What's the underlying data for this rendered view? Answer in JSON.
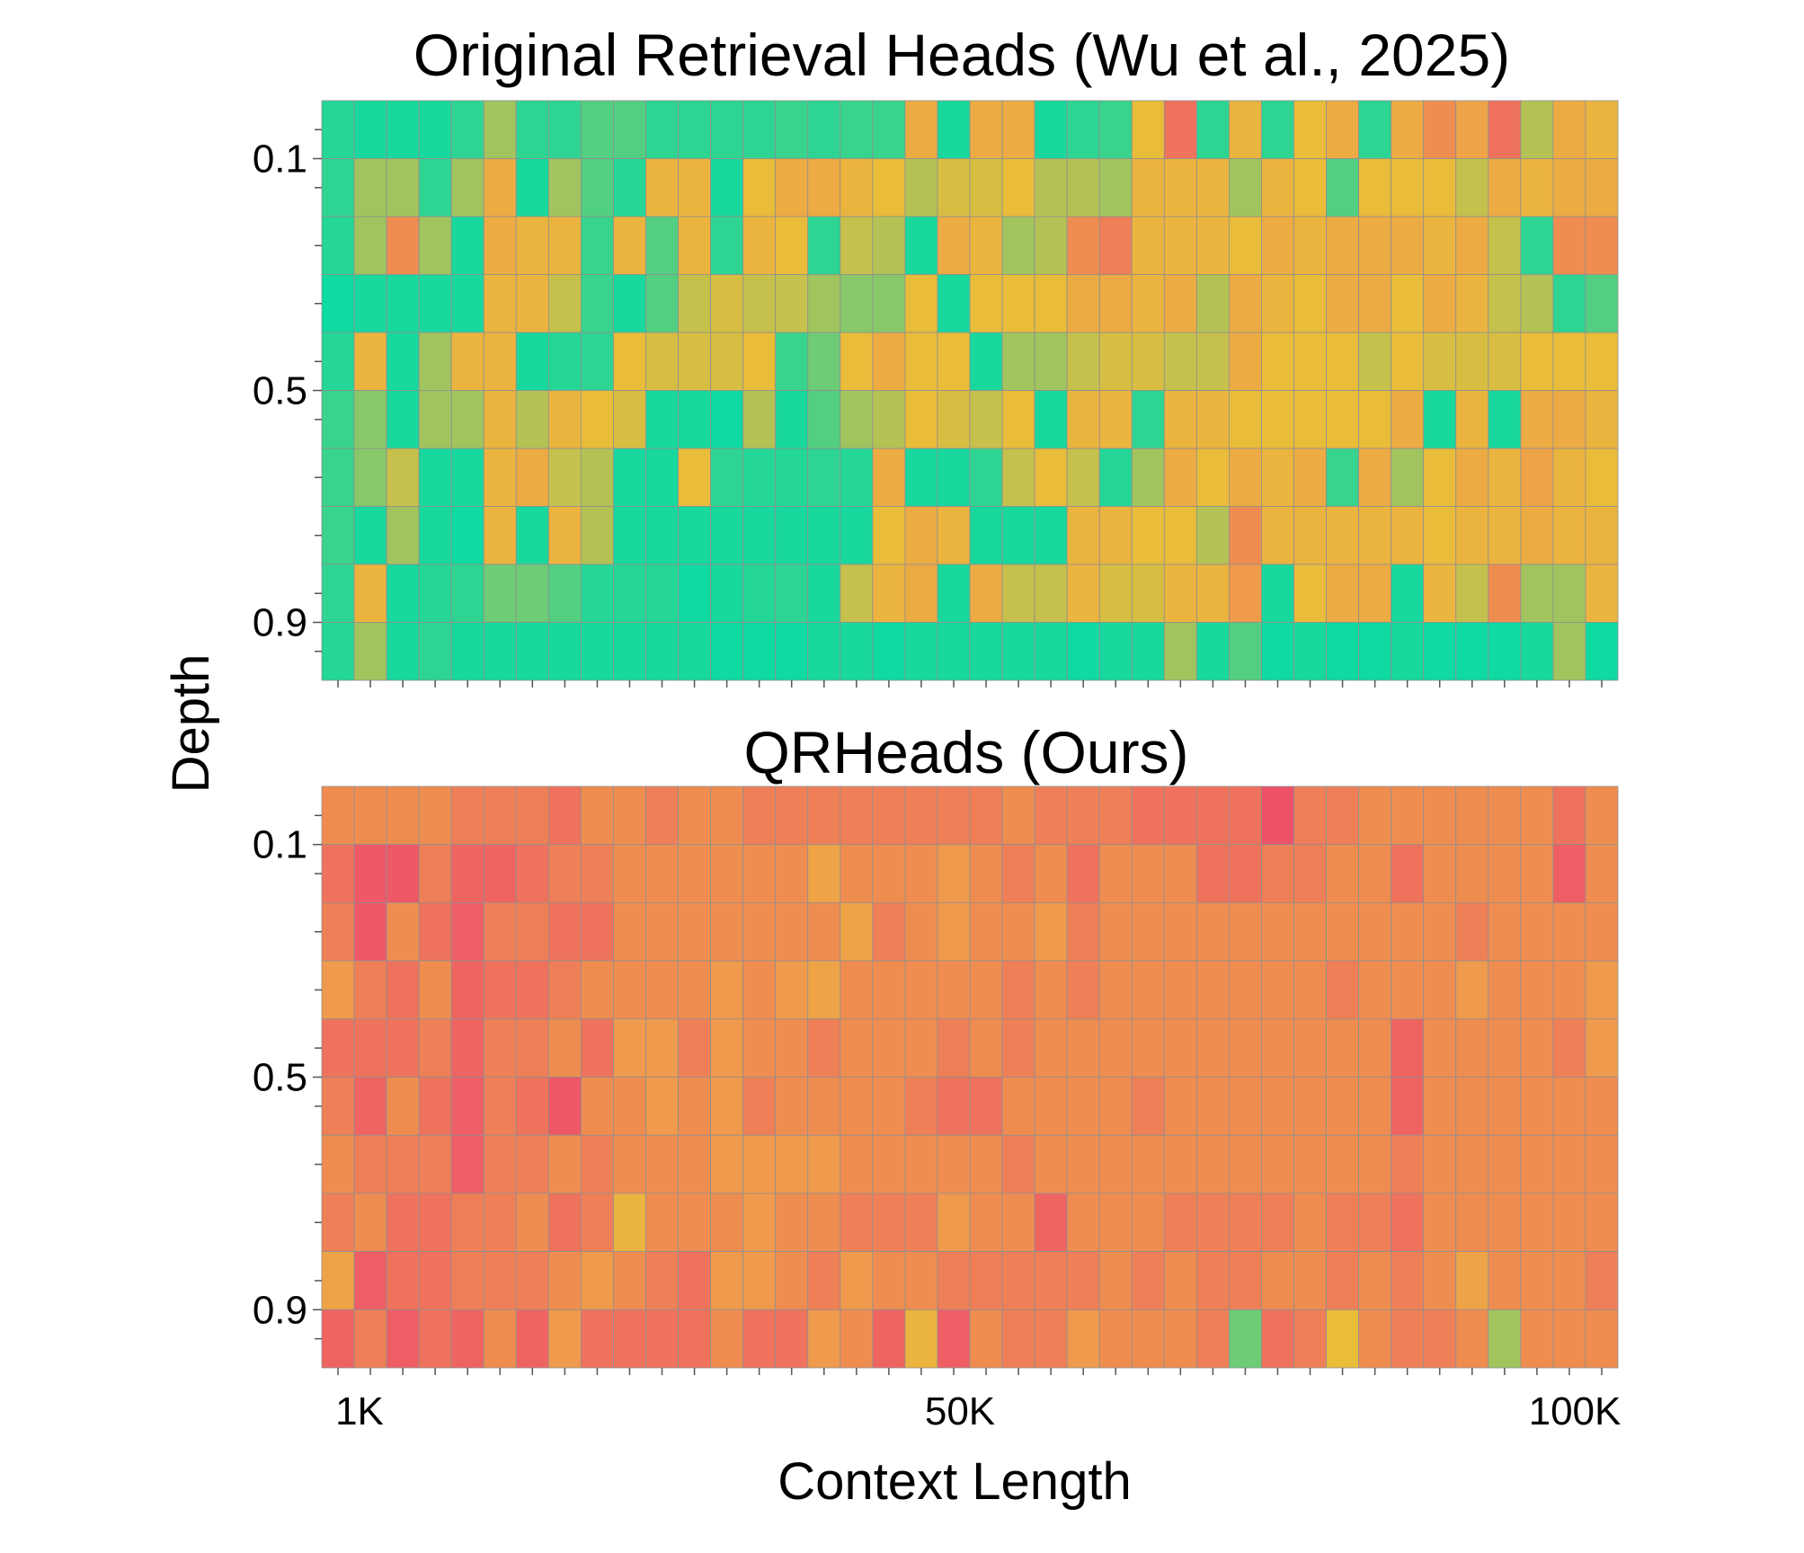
{
  "chart_data": [
    {
      "type": "heatmap",
      "title": "Original Retrieval Heads (Wu et al., 2025)",
      "xlabel": "Context Length",
      "ylabel": "Depth",
      "x_tick_labels": [
        "1K",
        "50K",
        "100K"
      ],
      "y_tick_labels": [
        "0.1",
        "0.5",
        "0.9"
      ],
      "n_cols": 40,
      "n_rows": 10,
      "color_scale": [
        "#ef6461",
        "#ef9a4c",
        "#e9bc39",
        "#a2c45e",
        "#38d38c",
        "#0fdaa2"
      ],
      "values": [
        [
          0.9,
          0.95,
          0.95,
          0.95,
          0.85,
          0.6,
          0.85,
          0.85,
          0.75,
          0.75,
          0.85,
          0.85,
          0.85,
          0.85,
          0.8,
          0.85,
          0.8,
          0.8,
          0.3,
          0.95,
          0.3,
          0.3,
          0.95,
          0.85,
          0.8,
          0.4,
          0.05,
          0.85,
          0.35,
          0.85,
          0.4,
          0.3,
          0.85,
          0.3,
          0.15,
          0.25,
          0.05,
          0.55,
          0.3,
          0.35
        ],
        [
          0.85,
          0.6,
          0.6,
          0.85,
          0.6,
          0.3,
          0.95,
          0.6,
          0.75,
          0.9,
          0.35,
          0.35,
          0.95,
          0.4,
          0.3,
          0.3,
          0.35,
          0.4,
          0.55,
          0.45,
          0.45,
          0.4,
          0.55,
          0.55,
          0.6,
          0.35,
          0.35,
          0.35,
          0.6,
          0.35,
          0.4,
          0.75,
          0.4,
          0.4,
          0.4,
          0.5,
          0.3,
          0.35,
          0.3,
          0.3
        ],
        [
          0.9,
          0.6,
          0.15,
          0.6,
          0.95,
          0.3,
          0.35,
          0.35,
          0.8,
          0.35,
          0.75,
          0.35,
          0.85,
          0.35,
          0.4,
          0.85,
          0.5,
          0.55,
          0.95,
          0.3,
          0.35,
          0.6,
          0.55,
          0.15,
          0.1,
          0.35,
          0.35,
          0.35,
          0.4,
          0.3,
          0.35,
          0.3,
          0.3,
          0.3,
          0.35,
          0.3,
          0.5,
          0.85,
          0.15,
          0.15
        ],
        [
          1.0,
          0.95,
          0.95,
          0.95,
          0.95,
          0.35,
          0.35,
          0.5,
          0.8,
          0.95,
          0.75,
          0.5,
          0.45,
          0.5,
          0.5,
          0.6,
          0.65,
          0.65,
          0.4,
          0.95,
          0.4,
          0.4,
          0.4,
          0.3,
          0.3,
          0.35,
          0.3,
          0.55,
          0.3,
          0.35,
          0.4,
          0.3,
          0.3,
          0.4,
          0.3,
          0.35,
          0.5,
          0.55,
          0.85,
          0.75
        ],
        [
          0.9,
          0.35,
          0.95,
          0.6,
          0.35,
          0.35,
          0.95,
          0.9,
          0.85,
          0.4,
          0.45,
          0.45,
          0.45,
          0.4,
          0.8,
          0.7,
          0.4,
          0.3,
          0.4,
          0.4,
          0.95,
          0.6,
          0.6,
          0.5,
          0.45,
          0.45,
          0.5,
          0.5,
          0.3,
          0.4,
          0.4,
          0.4,
          0.5,
          0.4,
          0.45,
          0.45,
          0.45,
          0.4,
          0.4,
          0.4
        ],
        [
          0.8,
          0.65,
          0.95,
          0.6,
          0.6,
          0.35,
          0.55,
          0.35,
          0.4,
          0.45,
          0.95,
          0.95,
          1.0,
          0.55,
          0.95,
          0.75,
          0.6,
          0.55,
          0.4,
          0.45,
          0.5,
          0.4,
          0.95,
          0.35,
          0.35,
          0.85,
          0.35,
          0.35,
          0.4,
          0.4,
          0.4,
          0.4,
          0.4,
          0.3,
          0.95,
          0.35,
          0.95,
          0.3,
          0.3,
          0.35
        ],
        [
          0.8,
          0.65,
          0.5,
          0.95,
          0.95,
          0.35,
          0.3,
          0.5,
          0.55,
          0.95,
          0.95,
          0.4,
          0.85,
          0.9,
          0.9,
          0.85,
          0.9,
          0.3,
          0.95,
          0.95,
          0.85,
          0.5,
          0.4,
          0.5,
          0.9,
          0.6,
          0.3,
          0.4,
          0.3,
          0.35,
          0.3,
          0.8,
          0.3,
          0.6,
          0.4,
          0.3,
          0.35,
          0.25,
          0.35,
          0.4
        ],
        [
          0.8,
          0.95,
          0.6,
          0.95,
          1.0,
          0.35,
          0.95,
          0.35,
          0.55,
          0.95,
          0.95,
          0.95,
          0.95,
          0.95,
          0.95,
          0.95,
          0.95,
          0.4,
          0.3,
          0.35,
          0.95,
          0.95,
          0.95,
          0.35,
          0.35,
          0.4,
          0.4,
          0.55,
          0.15,
          0.35,
          0.35,
          0.35,
          0.35,
          0.35,
          0.4,
          0.35,
          0.35,
          0.3,
          0.35,
          0.35
        ],
        [
          0.85,
          0.35,
          0.95,
          0.9,
          0.85,
          0.7,
          0.7,
          0.75,
          0.9,
          0.9,
          0.9,
          1.0,
          0.95,
          0.9,
          0.85,
          0.95,
          0.5,
          0.35,
          0.3,
          0.95,
          0.3,
          0.5,
          0.5,
          0.35,
          0.45,
          0.45,
          0.35,
          0.35,
          0.2,
          0.95,
          0.4,
          0.3,
          0.3,
          0.95,
          0.35,
          0.5,
          0.15,
          0.6,
          0.6,
          0.35
        ],
        [
          0.9,
          0.6,
          0.95,
          0.85,
          0.95,
          0.95,
          0.95,
          0.95,
          0.95,
          0.95,
          0.95,
          0.95,
          1.0,
          1.0,
          1.0,
          0.95,
          0.95,
          1.0,
          0.95,
          0.95,
          0.95,
          0.95,
          0.95,
          1.0,
          0.95,
          0.95,
          0.6,
          0.95,
          0.75,
          1.0,
          0.95,
          1.0,
          1.0,
          0.95,
          1.0,
          1.0,
          1.0,
          0.95,
          0.6,
          1.0
        ]
      ]
    },
    {
      "type": "heatmap",
      "title": "QRHeads (Ours)",
      "xlabel": "Context Length",
      "ylabel": "Depth",
      "x_tick_labels": [
        "1K",
        "50K",
        "100K"
      ],
      "y_tick_labels": [
        "0.1",
        "0.5",
        "0.9"
      ],
      "n_cols": 40,
      "n_rows": 10,
      "color_scale": [
        "#ec4c6c",
        "#ef6461",
        "#ef9a4c",
        "#e9bc39",
        "#a2c45e",
        "#38d38c"
      ],
      "values": [
        [
          0.35,
          0.35,
          0.35,
          0.35,
          0.3,
          0.3,
          0.3,
          0.25,
          0.35,
          0.35,
          0.3,
          0.35,
          0.35,
          0.3,
          0.3,
          0.3,
          0.3,
          0.3,
          0.3,
          0.3,
          0.3,
          0.35,
          0.3,
          0.3,
          0.3,
          0.25,
          0.25,
          0.25,
          0.25,
          0.05,
          0.3,
          0.3,
          0.35,
          0.35,
          0.35,
          0.35,
          0.35,
          0.35,
          0.25,
          0.35
        ],
        [
          0.25,
          0.1,
          0.1,
          0.3,
          0.2,
          0.2,
          0.25,
          0.3,
          0.3,
          0.35,
          0.35,
          0.35,
          0.35,
          0.35,
          0.35,
          0.45,
          0.35,
          0.35,
          0.35,
          0.4,
          0.35,
          0.3,
          0.35,
          0.25,
          0.35,
          0.35,
          0.35,
          0.25,
          0.25,
          0.3,
          0.3,
          0.35,
          0.35,
          0.25,
          0.35,
          0.35,
          0.35,
          0.35,
          0.15,
          0.35
        ],
        [
          0.3,
          0.1,
          0.35,
          0.25,
          0.15,
          0.3,
          0.3,
          0.25,
          0.25,
          0.35,
          0.35,
          0.35,
          0.35,
          0.35,
          0.35,
          0.35,
          0.45,
          0.3,
          0.35,
          0.4,
          0.35,
          0.35,
          0.4,
          0.3,
          0.35,
          0.35,
          0.35,
          0.35,
          0.35,
          0.35,
          0.35,
          0.35,
          0.35,
          0.35,
          0.35,
          0.3,
          0.35,
          0.35,
          0.35,
          0.35
        ],
        [
          0.4,
          0.3,
          0.25,
          0.35,
          0.2,
          0.25,
          0.25,
          0.3,
          0.35,
          0.35,
          0.35,
          0.35,
          0.4,
          0.35,
          0.4,
          0.45,
          0.35,
          0.35,
          0.35,
          0.35,
          0.35,
          0.3,
          0.35,
          0.3,
          0.35,
          0.35,
          0.35,
          0.35,
          0.35,
          0.35,
          0.35,
          0.3,
          0.35,
          0.35,
          0.35,
          0.4,
          0.35,
          0.35,
          0.35,
          0.4
        ],
        [
          0.25,
          0.25,
          0.25,
          0.3,
          0.2,
          0.3,
          0.3,
          0.35,
          0.25,
          0.4,
          0.4,
          0.3,
          0.4,
          0.35,
          0.35,
          0.3,
          0.35,
          0.35,
          0.35,
          0.3,
          0.35,
          0.3,
          0.35,
          0.35,
          0.35,
          0.35,
          0.35,
          0.35,
          0.35,
          0.35,
          0.35,
          0.35,
          0.35,
          0.2,
          0.35,
          0.35,
          0.35,
          0.35,
          0.3,
          0.4
        ],
        [
          0.3,
          0.2,
          0.35,
          0.25,
          0.15,
          0.3,
          0.25,
          0.1,
          0.35,
          0.35,
          0.4,
          0.35,
          0.4,
          0.3,
          0.35,
          0.35,
          0.35,
          0.35,
          0.3,
          0.25,
          0.25,
          0.35,
          0.35,
          0.35,
          0.35,
          0.3,
          0.35,
          0.35,
          0.35,
          0.35,
          0.35,
          0.35,
          0.35,
          0.2,
          0.35,
          0.35,
          0.35,
          0.35,
          0.35,
          0.35
        ],
        [
          0.35,
          0.3,
          0.3,
          0.3,
          0.15,
          0.3,
          0.3,
          0.35,
          0.3,
          0.35,
          0.35,
          0.35,
          0.4,
          0.4,
          0.4,
          0.4,
          0.35,
          0.35,
          0.35,
          0.35,
          0.35,
          0.3,
          0.35,
          0.35,
          0.35,
          0.35,
          0.35,
          0.35,
          0.35,
          0.35,
          0.35,
          0.35,
          0.35,
          0.3,
          0.35,
          0.35,
          0.35,
          0.35,
          0.35,
          0.35
        ],
        [
          0.3,
          0.35,
          0.25,
          0.25,
          0.3,
          0.3,
          0.35,
          0.25,
          0.3,
          0.55,
          0.35,
          0.35,
          0.35,
          0.4,
          0.35,
          0.35,
          0.3,
          0.3,
          0.3,
          0.4,
          0.35,
          0.35,
          0.2,
          0.35,
          0.35,
          0.35,
          0.3,
          0.3,
          0.3,
          0.3,
          0.35,
          0.3,
          0.3,
          0.25,
          0.35,
          0.35,
          0.35,
          0.35,
          0.35,
          0.35
        ],
        [
          0.45,
          0.15,
          0.25,
          0.25,
          0.3,
          0.3,
          0.3,
          0.35,
          0.4,
          0.35,
          0.3,
          0.25,
          0.4,
          0.4,
          0.35,
          0.3,
          0.4,
          0.35,
          0.35,
          0.3,
          0.3,
          0.3,
          0.3,
          0.3,
          0.35,
          0.3,
          0.35,
          0.3,
          0.3,
          0.35,
          0.35,
          0.3,
          0.35,
          0.3,
          0.35,
          0.45,
          0.35,
          0.35,
          0.35,
          0.3
        ],
        [
          0.2,
          0.3,
          0.15,
          0.25,
          0.2,
          0.35,
          0.2,
          0.4,
          0.25,
          0.25,
          0.25,
          0.25,
          0.35,
          0.25,
          0.25,
          0.4,
          0.35,
          0.2,
          0.55,
          0.15,
          0.35,
          0.3,
          0.3,
          0.4,
          0.35,
          0.35,
          0.35,
          0.3,
          0.9,
          0.25,
          0.3,
          0.6,
          0.35,
          0.3,
          0.3,
          0.35,
          0.8,
          0.35,
          0.35,
          0.35
        ]
      ]
    }
  ]
}
